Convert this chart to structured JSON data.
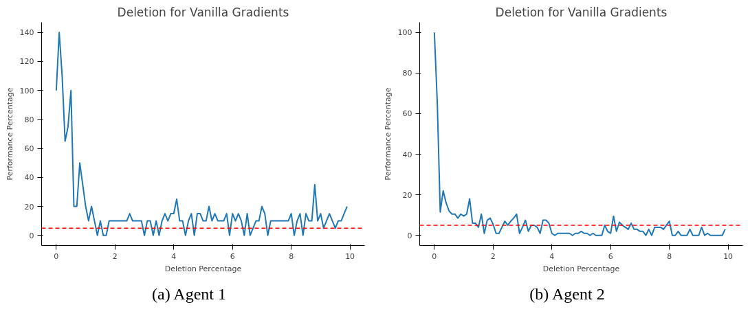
{
  "chart_data": [
    {
      "type": "line",
      "title": "Deletion for Vanilla Gradients",
      "xlabel": "Deletion Percentage",
      "ylabel": "Performance Percentage",
      "annotations": [
        "(a) Agent 1"
      ],
      "x": [
        0,
        0.1,
        0.2,
        0.3,
        0.4,
        0.5,
        0.6,
        0.7,
        0.8,
        0.9,
        1,
        1.1,
        1.2,
        1.3,
        1.4,
        1.5,
        1.6,
        1.7,
        1.8,
        1.9,
        2,
        2.1,
        2.2,
        2.3,
        2.4,
        2.5,
        2.6,
        2.7,
        2.8,
        2.9,
        3,
        3.1,
        3.2,
        3.3,
        3.4,
        3.5,
        3.6,
        3.7,
        3.8,
        3.9,
        4,
        4.1,
        4.2,
        4.3,
        4.4,
        4.5,
        4.6,
        4.7,
        4.8,
        4.9,
        5,
        5.1,
        5.2,
        5.3,
        5.4,
        5.5,
        5.6,
        5.7,
        5.8,
        5.9,
        6,
        6.1,
        6.2,
        6.3,
        6.4,
        6.5,
        6.6,
        6.7,
        6.8,
        6.9,
        7,
        7.1,
        7.2,
        7.3,
        7.4,
        7.5,
        7.6,
        7.7,
        7.8,
        7.9,
        8,
        8.1,
        8.2,
        8.3,
        8.4,
        8.5,
        8.6,
        8.7,
        8.8,
        8.9,
        9,
        9.1,
        9.2,
        9.3,
        9.4,
        9.5,
        9.6,
        9.7,
        9.8,
        9.9
      ],
      "series": [
        {
          "color": "#1f77b4",
          "values": [
            100,
            140,
            110,
            65,
            75,
            100,
            20,
            20,
            50,
            35,
            20,
            10,
            20,
            10,
            0,
            10,
            0,
            0,
            10,
            10,
            10,
            10,
            10,
            10,
            10,
            15,
            10,
            10,
            10,
            10,
            0,
            10,
            10,
            0,
            10,
            0,
            10,
            15,
            10,
            15,
            15,
            25,
            10,
            10,
            0,
            10,
            15,
            0,
            15,
            15,
            10,
            10,
            20,
            10,
            15,
            10,
            10,
            10,
            15,
            0,
            15,
            10,
            15,
            10,
            0,
            15,
            0,
            5,
            10,
            10,
            20,
            15,
            0,
            10,
            10,
            10,
            10,
            10,
            10,
            10,
            15,
            0,
            10,
            15,
            0,
            15,
            10,
            10,
            35,
            10,
            15,
            5,
            10,
            15,
            10,
            5,
            10,
            10,
            15,
            20
          ]
        }
      ],
      "xlim": [
        -0.5,
        10.5
      ],
      "ylim": [
        -7,
        147
      ],
      "xticks": [
        0,
        2,
        4,
        6,
        8,
        10
      ],
      "yticks": [
        0,
        20,
        40,
        60,
        80,
        100,
        120,
        140
      ],
      "grid": false,
      "ref_lines": [
        {
          "axis": "y",
          "value": 5,
          "color": "#ff0000",
          "line_style": "dashed"
        }
      ]
    },
    {
      "type": "line",
      "title": "Deletion for Vanilla Gradients",
      "xlabel": "Deletion Percentage",
      "ylabel": "Performance Percentage",
      "annotations": [
        "(b) Agent 2"
      ],
      "x": [
        0,
        0.1,
        0.2,
        0.3,
        0.4,
        0.5,
        0.6,
        0.7,
        0.8,
        0.9,
        1,
        1.1,
        1.2,
        1.3,
        1.4,
        1.5,
        1.6,
        1.7,
        1.8,
        1.9,
        2,
        2.1,
        2.2,
        2.3,
        2.4,
        2.5,
        2.6,
        2.7,
        2.8,
        2.9,
        3,
        3.1,
        3.2,
        3.3,
        3.4,
        3.5,
        3.6,
        3.7,
        3.8,
        3.9,
        4,
        4.1,
        4.2,
        4.3,
        4.4,
        4.5,
        4.6,
        4.7,
        4.8,
        4.9,
        5,
        5.1,
        5.2,
        5.3,
        5.4,
        5.5,
        5.6,
        5.7,
        5.8,
        5.9,
        6,
        6.1,
        6.2,
        6.3,
        6.4,
        6.5,
        6.6,
        6.7,
        6.8,
        6.9,
        7,
        7.1,
        7.2,
        7.3,
        7.4,
        7.5,
        7.6,
        7.7,
        7.8,
        7.9,
        8,
        8.1,
        8.2,
        8.3,
        8.4,
        8.5,
        8.6,
        8.7,
        8.8,
        8.9,
        9,
        9.1,
        9.2,
        9.3,
        9.4,
        9.5,
        9.6,
        9.7,
        9.8,
        9.9
      ],
      "series": [
        {
          "color": "#1f77b4",
          "values": [
            100,
            65,
            11.5,
            22,
            16,
            12,
            10.5,
            10.5,
            8.5,
            10.5,
            9.5,
            10.5,
            18,
            6,
            6,
            4,
            10.5,
            1,
            7.5,
            8.5,
            5.5,
            1,
            1,
            4,
            7,
            5,
            7,
            8.5,
            10.5,
            1,
            4,
            7.5,
            2,
            5,
            5,
            4,
            1,
            7.5,
            7.5,
            6,
            1,
            0,
            1,
            1,
            1,
            1,
            1,
            0,
            1,
            1,
            2,
            1,
            1,
            0,
            1,
            0,
            0,
            0,
            5,
            2,
            1,
            9.5,
            2,
            6.5,
            5,
            4,
            3,
            6,
            3,
            3,
            2,
            2,
            0,
            3,
            0,
            4,
            4,
            4,
            3,
            5,
            7,
            0,
            0,
            2,
            0,
            0,
            0,
            3,
            0,
            0,
            0,
            4,
            0,
            1,
            0,
            0,
            0,
            0,
            0,
            3
          ]
        }
      ],
      "xlim": [
        -0.5,
        10.5
      ],
      "ylim": [
        -5,
        105
      ],
      "xticks": [
        0,
        2,
        4,
        6,
        8,
        10
      ],
      "yticks": [
        0,
        20,
        40,
        60,
        80,
        100
      ],
      "grid": false,
      "ref_lines": [
        {
          "axis": "y",
          "value": 5,
          "color": "#ff0000",
          "line_style": "dashed"
        }
      ]
    }
  ]
}
